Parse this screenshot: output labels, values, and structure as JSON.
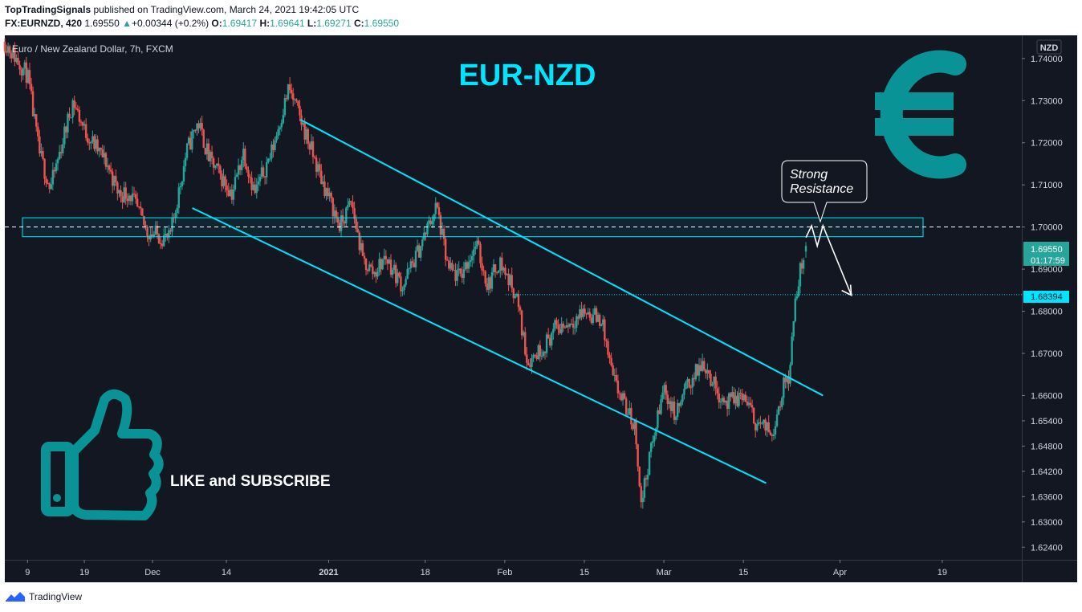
{
  "header": {
    "author": "TopTradingSignals",
    "published_text": "published on TradingView.com, March 24, 2021 19:42:05 UTC",
    "symbol": "FX:EURNZD, 420",
    "last": "1.69550",
    "change_arrow": "▲",
    "change": "+0.00344 (+0.2%)",
    "o_label": "O:",
    "o": "1.69417",
    "h_label": "H:",
    "h": "1.69641",
    "l_label": "L:",
    "l": "1.69271",
    "c_label": "C:",
    "c": "1.69550"
  },
  "chart": {
    "series_title": "Euro / New Zealand Dollar, 7h, FXCM",
    "currency_badge": "NZD",
    "headline": "EUR-NZD",
    "euro_icon": "euro-sign-icon",
    "thumbs_icon": "thumbs-up-icon",
    "like_text": "LIKE and SUBSCRIBE",
    "callout_line1": "Strong",
    "callout_line2": "Resistance",
    "price_badge": "1.69550",
    "countdown": "01:17:59",
    "level_badge": "1.68394"
  },
  "footer": {
    "brand": "TradingView",
    "logo_icon": "tradingview-logo-icon"
  },
  "colors": {
    "background": "#131722",
    "up": "#26a69a",
    "down": "#ef5350",
    "channel": "#00e5ff",
    "headline": "#00e5ff",
    "euro": "#0a9396",
    "thumb": "#0a9396"
  },
  "chart_data": {
    "type": "candlestick",
    "title": "Euro / New Zealand Dollar, 7h, FXCM",
    "ylim": [
      1.621,
      1.7455
    ],
    "y_ticks": [
      "1.74000",
      "1.73000",
      "1.72000",
      "1.71000",
      "1.70000",
      "1.69000",
      "1.68000",
      "1.67000",
      "1.66000",
      "1.65400",
      "1.64800",
      "1.64200",
      "1.63600",
      "1.63000",
      "1.62400"
    ],
    "x_ticks": [
      "9",
      "19",
      "Dec",
      "14",
      "2021",
      "18",
      "Feb",
      "15",
      "Mar",
      "15",
      "Apr",
      "19"
    ],
    "x_tick_dates": [
      "2020-11-09",
      "2020-11-19",
      "2020-12-01",
      "2020-12-14",
      "2021-01-01",
      "2021-01-18",
      "2021-02-01",
      "2021-02-15",
      "2021-03-01",
      "2021-03-15",
      "2021-04-01",
      "2021-04-19"
    ],
    "close_path": [
      [
        "2020-11-05",
        1.744
      ],
      [
        "2020-11-09",
        1.736
      ],
      [
        "2020-11-11",
        1.718
      ],
      [
        "2020-11-13",
        1.709
      ],
      [
        "2020-11-17",
        1.73
      ],
      [
        "2020-11-19",
        1.723
      ],
      [
        "2020-11-23",
        1.715
      ],
      [
        "2020-11-25",
        1.708
      ],
      [
        "2020-11-27",
        1.708
      ],
      [
        "2020-11-30",
        1.699
      ],
      [
        "2020-12-02",
        1.698
      ],
      [
        "2020-12-04",
        1.697
      ],
      [
        "2020-12-07",
        1.718
      ],
      [
        "2020-12-09",
        1.725
      ],
      [
        "2020-12-11",
        1.716
      ],
      [
        "2020-12-15",
        1.708
      ],
      [
        "2020-12-17",
        1.718
      ],
      [
        "2020-12-19",
        1.708
      ],
      [
        "2020-12-22",
        1.718
      ],
      [
        "2020-12-25",
        1.733
      ],
      [
        "2020-12-28",
        1.722
      ],
      [
        "2020-12-30",
        1.714
      ],
      [
        "2021-01-03",
        1.7
      ],
      [
        "2021-01-05",
        1.706
      ],
      [
        "2021-01-07",
        1.692
      ],
      [
        "2021-01-09",
        1.689
      ],
      [
        "2021-01-11",
        1.693
      ],
      [
        "2021-01-14",
        1.686
      ],
      [
        "2021-01-17",
        1.695
      ],
      [
        "2021-01-20",
        1.705
      ],
      [
        "2021-01-22",
        1.69
      ],
      [
        "2021-01-24",
        1.688
      ],
      [
        "2021-01-27",
        1.696
      ],
      [
        "2021-01-29",
        1.686
      ],
      [
        "2021-01-31",
        1.692
      ],
      [
        "2021-02-03",
        1.684
      ],
      [
        "2021-02-05",
        1.668
      ],
      [
        "2021-02-08",
        1.672
      ],
      [
        "2021-02-10",
        1.676
      ],
      [
        "2021-02-12",
        1.677
      ],
      [
        "2021-02-15",
        1.68
      ],
      [
        "2021-02-18",
        1.678
      ],
      [
        "2021-02-20",
        1.664
      ],
      [
        "2021-02-22",
        1.658
      ],
      [
        "2021-02-24",
        1.652
      ],
      [
        "2021-02-25",
        1.634
      ],
      [
        "2021-02-26",
        1.642
      ],
      [
        "2021-03-01",
        1.662
      ],
      [
        "2021-03-03",
        1.655
      ],
      [
        "2021-03-05",
        1.662
      ],
      [
        "2021-03-08",
        1.668
      ],
      [
        "2021-03-10",
        1.662
      ],
      [
        "2021-03-12",
        1.658
      ],
      [
        "2021-03-15",
        1.66
      ],
      [
        "2021-03-17",
        1.654
      ],
      [
        "2021-03-19",
        1.652
      ],
      [
        "2021-03-20",
        1.651
      ],
      [
        "2021-03-22",
        1.662
      ],
      [
        "2021-03-23",
        1.665
      ],
      [
        "2021-03-24",
        1.68
      ],
      [
        "2021-03-25",
        1.69
      ],
      [
        "2021-03-26",
        1.6955
      ]
    ],
    "last_candle": {
      "open": 1.69417,
      "high": 1.69641,
      "low": 1.69271,
      "close": 1.6955
    },
    "resistance_zone": [
      1.6977,
      1.7022
    ],
    "resistance_level": 1.7,
    "support_level": 1.68394,
    "channel_upper": [
      [
        "2020-12-27",
        1.7255
      ],
      [
        "2021-03-29",
        1.66
      ]
    ],
    "channel_lower": [
      [
        "2020-12-08",
        1.7045
      ],
      [
        "2021-03-19",
        1.6392
      ]
    ],
    "projection": [
      [
        "2021-03-26",
        1.6975
      ],
      [
        "2021-03-27",
        1.7003
      ],
      [
        "2021-03-28",
        1.6955
      ],
      [
        "2021-03-29",
        1.7003
      ],
      [
        "2021-04-03",
        1.6838
      ]
    ]
  }
}
